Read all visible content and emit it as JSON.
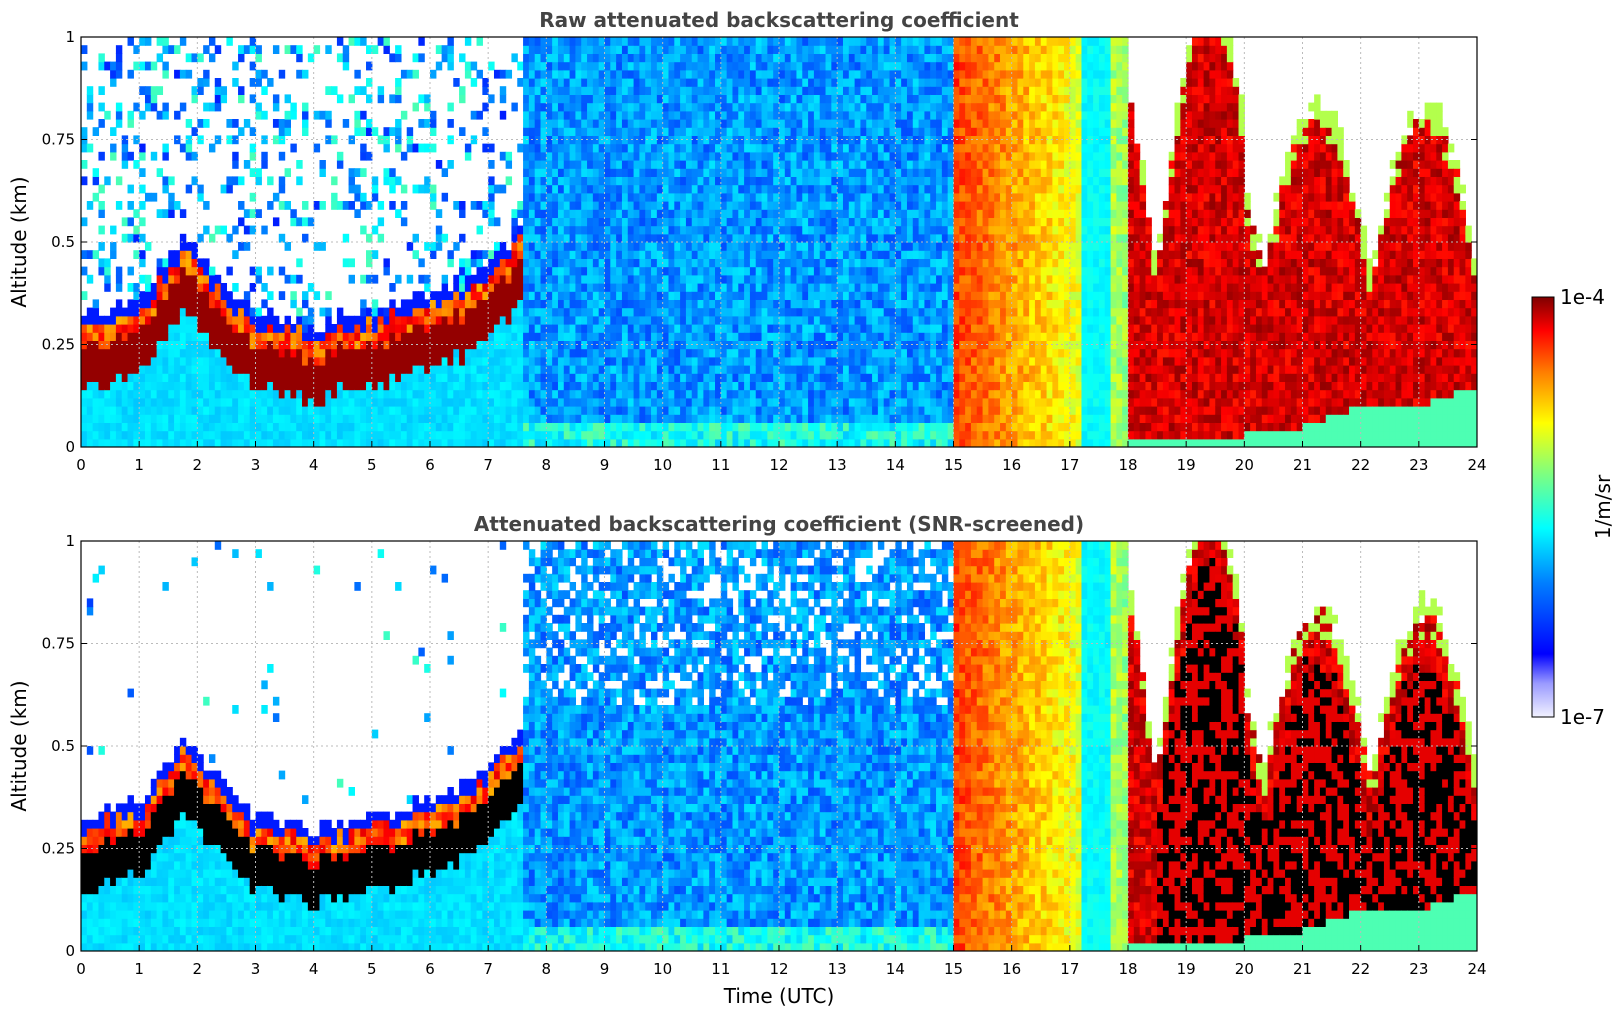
{
  "chart_data": [
    {
      "type": "heatmap",
      "title": "Raw attenuated backscattering coefficient",
      "xlabel": "",
      "ylabel": "Altitude (km)",
      "xlim": [
        0,
        24
      ],
      "ylim": [
        0,
        1
      ],
      "x_ticks": [
        "0",
        "1",
        "2",
        "3",
        "4",
        "5",
        "6",
        "7",
        "8",
        "9",
        "10",
        "11",
        "12",
        "13",
        "14",
        "15",
        "16",
        "17",
        "18",
        "19",
        "20",
        "21",
        "22",
        "23",
        "24"
      ],
      "y_ticks": [
        "0",
        "0.25",
        "0.5",
        "0.75",
        "1"
      ],
      "grid": true,
      "colorscale": "jet (log)",
      "features": {
        "boundary_layer_top_km": [
          [
            0,
            0.27
          ],
          [
            1,
            0.3
          ],
          [
            1.8,
            0.46
          ],
          [
            2.5,
            0.33
          ],
          [
            3,
            0.27
          ],
          [
            4,
            0.24
          ],
          [
            5,
            0.27
          ],
          [
            6,
            0.31
          ],
          [
            7,
            0.38
          ],
          [
            7.5,
            0.47
          ]
        ],
        "saturated_cloud_base_km": [
          [
            18,
            0.03
          ],
          [
            19,
            0.03
          ],
          [
            20,
            0.03
          ],
          [
            21,
            0.05
          ],
          [
            22,
            0.1
          ],
          [
            23,
            0.1
          ],
          [
            24,
            0.15
          ]
        ],
        "high_signal_band_hours": [
          15,
          18
        ]
      }
    },
    {
      "type": "heatmap",
      "title": "Attenuated backscattering coefficient (SNR-screened)",
      "xlabel": "Time (UTC)",
      "ylabel": "Altitude (km)",
      "xlim": [
        0,
        24
      ],
      "ylim": [
        0,
        1
      ],
      "x_ticks": [
        "0",
        "1",
        "2",
        "3",
        "4",
        "5",
        "6",
        "7",
        "8",
        "9",
        "10",
        "11",
        "12",
        "13",
        "14",
        "15",
        "16",
        "17",
        "18",
        "19",
        "20",
        "21",
        "22",
        "23",
        "24"
      ],
      "y_ticks": [
        "0",
        "0.25",
        "0.5",
        "0.75",
        "1"
      ],
      "grid": true,
      "colorscale": "jet (log)",
      "features": {
        "boundary_layer_top_km": [
          [
            0,
            0.27
          ],
          [
            1,
            0.3
          ],
          [
            1.8,
            0.46
          ],
          [
            2.5,
            0.33
          ],
          [
            3,
            0.27
          ],
          [
            4,
            0.24
          ],
          [
            5,
            0.27
          ],
          [
            6,
            0.31
          ],
          [
            7,
            0.38
          ],
          [
            7.5,
            0.47
          ]
        ],
        "high_signal_band_hours": [
          15,
          18
        ]
      }
    }
  ],
  "colorbar": {
    "label": "1/m/sr",
    "min_label": "1e-7",
    "max_label": "1e-4",
    "scale": "log"
  },
  "colors": {
    "title_color": "#444444",
    "grid_color": "#bbbbbb",
    "jet_stops": [
      "#00007f",
      "#0000ff",
      "#007fff",
      "#00ffff",
      "#7fff7f",
      "#ffff00",
      "#ff7f00",
      "#ff0000",
      "#7f0000"
    ]
  }
}
